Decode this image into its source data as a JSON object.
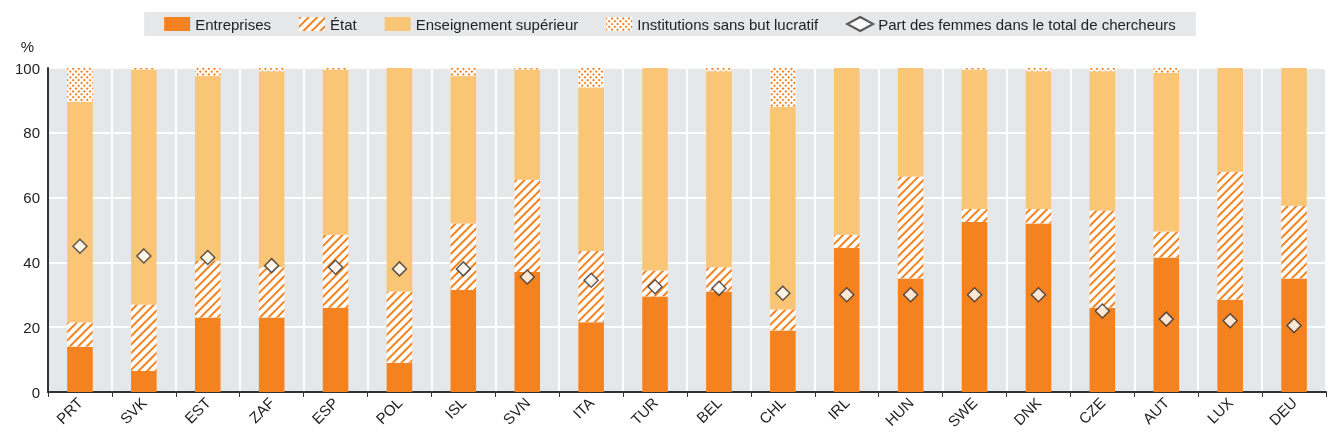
{
  "chart_data": {
    "type": "bar",
    "stacked": true,
    "ylabel": "%",
    "legend": "top",
    "grid": true,
    "categories": [
      "PRT",
      "SVK",
      "EST",
      "ZAF",
      "ESP",
      "POL",
      "ISL",
      "SVN",
      "ITA",
      "TUR",
      "BEL",
      "CHL",
      "IRL",
      "HUN",
      "SWE",
      "DNK",
      "CZE",
      "AUT",
      "LUX",
      "DEU"
    ],
    "ylim": [
      0,
      100
    ],
    "yticks": [
      0,
      20,
      40,
      60,
      80,
      100
    ],
    "series": [
      {
        "name": "Entreprises",
        "color": "#f4821f",
        "values": [
          14,
          6.5,
          23,
          23,
          26,
          9,
          31.5,
          37,
          21.5,
          29.5,
          31,
          19,
          44.5,
          35,
          52.5,
          52,
          26,
          41.5,
          28.5,
          35
        ]
      },
      {
        "name": "État",
        "color": "#f4821f",
        "values": [
          7.5,
          20.5,
          17.5,
          15.5,
          22.5,
          22,
          20.5,
          28.5,
          22,
          8,
          7.5,
          6.5,
          4,
          31.5,
          4,
          4.5,
          30,
          8,
          39.5,
          22.5
        ]
      },
      {
        "name": "Enseignement supérieur",
        "color": "#fbc576",
        "values": [
          68,
          72.5,
          57,
          60.5,
          51,
          69,
          45.5,
          34,
          50.5,
          62.5,
          60.5,
          62.5,
          51.5,
          33.5,
          43,
          42.5,
          43,
          49,
          32,
          42.5
        ]
      },
      {
        "name": "Institutions sans but lucratif",
        "color": "#f4821f",
        "values": [
          10.5,
          0.5,
          2.5,
          1,
          0.5,
          0,
          2.5,
          0.5,
          6,
          0,
          1,
          12,
          0,
          0,
          0.5,
          1,
          1,
          1.5,
          0,
          0
        ]
      },
      {
        "name": "Part des femmes dans le total de chercheurs",
        "type": "scatter",
        "marker": "diamond",
        "color": "#ffffff",
        "values": [
          45,
          42,
          41.5,
          39,
          38.5,
          38,
          38,
          35.5,
          34.5,
          32.5,
          32,
          30.5,
          30,
          30,
          30,
          30,
          25,
          22.5,
          22,
          20.5
        ]
      }
    ]
  }
}
